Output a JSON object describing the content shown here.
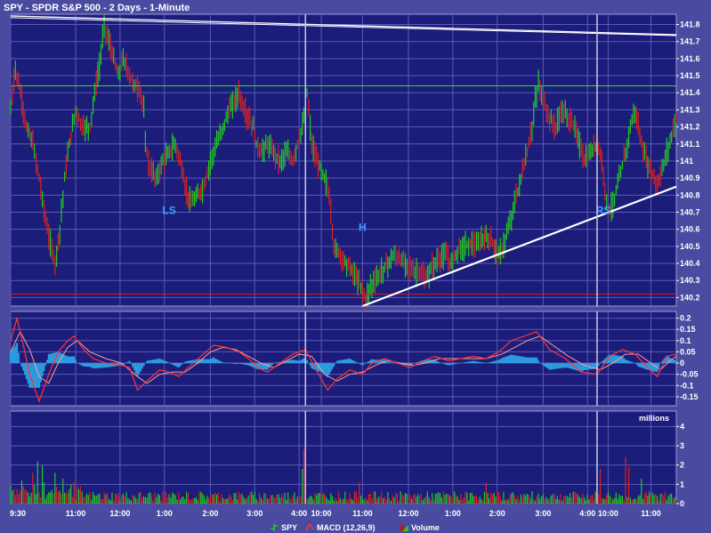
{
  "chart_data": {
    "title": "SPY - SPDR S&P 500 - 2 Days - 1-Minute",
    "type": "line",
    "price_panel": {
      "ylim": [
        140.15,
        141.86
      ],
      "y_ticks": [
        "141.8",
        "141.7",
        "141.6",
        "141.5",
        "141.4",
        "141.3",
        "141.2",
        "141.1",
        "141",
        "140.9",
        "140.8",
        "140.7",
        "140.6",
        "140.5",
        "140.4",
        "140.3",
        "140.2"
      ],
      "y_tick_values": [
        141.8,
        141.7,
        141.6,
        141.5,
        141.4,
        141.3,
        141.2,
        141.1,
        141.0,
        140.9,
        140.8,
        140.7,
        140.6,
        140.5,
        140.4,
        140.3,
        140.2
      ],
      "price_path": [
        [
          0,
          141.3
        ],
        [
          3,
          141.55
        ],
        [
          6,
          141.4
        ],
        [
          10,
          141.2
        ],
        [
          14,
          141.1
        ],
        [
          18,
          140.9
        ],
        [
          23,
          140.6
        ],
        [
          28,
          140.4
        ],
        [
          31,
          140.6
        ],
        [
          34,
          140.9
        ],
        [
          37,
          141.1
        ],
        [
          41,
          141.3
        ],
        [
          45,
          141.2
        ],
        [
          50,
          141.2
        ],
        [
          53,
          141.4
        ],
        [
          56,
          141.55
        ],
        [
          59,
          141.8
        ],
        [
          62,
          141.7
        ],
        [
          65,
          141.6
        ],
        [
          68,
          141.5
        ],
        [
          71,
          141.6
        ],
        [
          75,
          141.5
        ],
        [
          78,
          141.45
        ],
        [
          82,
          141.4
        ],
        [
          84,
          141.3
        ],
        [
          85,
          141.1
        ],
        [
          88,
          140.95
        ],
        [
          92,
          140.9
        ],
        [
          96,
          141.0
        ],
        [
          100,
          141.05
        ],
        [
          104,
          141.1
        ],
        [
          107,
          141.0
        ],
        [
          110,
          140.85
        ],
        [
          114,
          140.75
        ],
        [
          118,
          140.8
        ],
        [
          122,
          140.85
        ],
        [
          126,
          141.0
        ],
        [
          130,
          141.1
        ],
        [
          134,
          141.2
        ],
        [
          138,
          141.3
        ],
        [
          141,
          141.35
        ],
        [
          144,
          141.4
        ],
        [
          147,
          141.3
        ],
        [
          150,
          141.25
        ],
        [
          153,
          141.2
        ],
        [
          155,
          141.1
        ],
        [
          158,
          141.05
        ],
        [
          162,
          141.1
        ],
        [
          166,
          141.05
        ],
        [
          170,
          141.0
        ],
        [
          174,
          141.05
        ],
        [
          178,
          141.0
        ],
        [
          181,
          141.1
        ],
        [
          184,
          141.2
        ],
        [
          186,
          141.3
        ],
        [
          187,
          141.4
        ],
        [
          190,
          141.1
        ],
        [
          193,
          141.0
        ],
        [
          196,
          140.95
        ],
        [
          198,
          140.9
        ],
        [
          200,
          140.85
        ],
        [
          202,
          140.7
        ],
        [
          204,
          140.5
        ],
        [
          208,
          140.45
        ],
        [
          212,
          140.4
        ],
        [
          216,
          140.35
        ],
        [
          219,
          140.3
        ],
        [
          222,
          140.25
        ],
        [
          224,
          140.18
        ],
        [
          226,
          140.25
        ],
        [
          230,
          140.3
        ],
        [
          234,
          140.35
        ],
        [
          238,
          140.4
        ],
        [
          242,
          140.45
        ],
        [
          246,
          140.42
        ],
        [
          250,
          140.4
        ],
        [
          254,
          140.35
        ],
        [
          258,
          140.35
        ],
        [
          262,
          140.3
        ],
        [
          266,
          140.38
        ],
        [
          270,
          140.42
        ],
        [
          274,
          140.45
        ],
        [
          278,
          140.4
        ],
        [
          282,
          140.48
        ],
        [
          286,
          140.5
        ],
        [
          290,
          140.52
        ],
        [
          294,
          140.5
        ],
        [
          298,
          140.55
        ],
        [
          302,
          140.55
        ],
        [
          305,
          140.5
        ],
        [
          308,
          140.45
        ],
        [
          311,
          140.5
        ],
        [
          314,
          140.6
        ],
        [
          318,
          140.75
        ],
        [
          322,
          140.9
        ],
        [
          326,
          141.05
        ],
        [
          329,
          141.2
        ],
        [
          331,
          141.35
        ],
        [
          333,
          141.45
        ],
        [
          336,
          141.35
        ],
        [
          340,
          141.25
        ],
        [
          344,
          141.2
        ],
        [
          348,
          141.3
        ],
        [
          352,
          141.25
        ],
        [
          356,
          141.2
        ],
        [
          359,
          141.1
        ],
        [
          362,
          141.0
        ],
        [
          366,
          141.05
        ],
        [
          370,
          141.1
        ],
        [
          373,
          141.0
        ],
        [
          375,
          140.85
        ],
        [
          377,
          140.7
        ],
        [
          380,
          140.75
        ],
        [
          384,
          140.9
        ],
        [
          388,
          141.05
        ],
        [
          391,
          141.2
        ],
        [
          394,
          141.3
        ],
        [
          396,
          141.2
        ],
        [
          398,
          141.1
        ],
        [
          401,
          141.0
        ],
        [
          404,
          140.95
        ],
        [
          406,
          140.9
        ],
        [
          408,
          140.85
        ],
        [
          411,
          140.95
        ],
        [
          414,
          141.05
        ],
        [
          417,
          141.15
        ],
        [
          420,
          141.25
        ]
      ],
      "resistance_level": 141.44,
      "support_level": 140.22,
      "annotations": [
        {
          "text": "LS",
          "x_min": 100,
          "price": 140.69
        },
        {
          "text": "H",
          "x_min": 222,
          "price": 140.59
        },
        {
          "text": "RS",
          "x_min": 374,
          "price": 140.69
        }
      ],
      "neckline": [
        [
          222,
          140.15
        ],
        [
          420,
          140.85
        ]
      ],
      "upper_trend": [
        [
          0,
          141.85
        ],
        [
          420,
          141.74
        ]
      ]
    },
    "macd_panel": {
      "ylim": [
        -0.19,
        0.23
      ],
      "y_ticks": [
        "0.2",
        "0.15",
        "0.1",
        "0.05",
        "0",
        "-0.05",
        "-0.1",
        "-0.15"
      ],
      "y_tick_values": [
        0.2,
        0.15,
        0.1,
        0.05,
        0,
        -0.05,
        -0.1,
        -0.15
      ],
      "macd_path": [
        [
          0,
          0.1
        ],
        [
          4,
          0.2
        ],
        [
          8,
          0.08
        ],
        [
          12,
          -0.05
        ],
        [
          18,
          -0.17
        ],
        [
          24,
          -0.05
        ],
        [
          30,
          0.05
        ],
        [
          36,
          0.1
        ],
        [
          40,
          0.12
        ],
        [
          46,
          0.06
        ],
        [
          52,
          0.02
        ],
        [
          60,
          0.0
        ],
        [
          70,
          -0.01
        ],
        [
          75,
          -0.02
        ],
        [
          80,
          -0.12
        ],
        [
          86,
          -0.08
        ],
        [
          94,
          -0.03
        ],
        [
          100,
          -0.04
        ],
        [
          106,
          -0.06
        ],
        [
          112,
          -0.02
        ],
        [
          120,
          0.03
        ],
        [
          128,
          0.08
        ],
        [
          136,
          0.07
        ],
        [
          144,
          0.05
        ],
        [
          150,
          0.02
        ],
        [
          156,
          -0.02
        ],
        [
          162,
          -0.04
        ],
        [
          170,
          0.0
        ],
        [
          178,
          0.04
        ],
        [
          186,
          0.06
        ],
        [
          192,
          -0.02
        ],
        [
          200,
          -0.12
        ],
        [
          206,
          -0.07
        ],
        [
          214,
          -0.03
        ],
        [
          222,
          -0.05
        ],
        [
          228,
          0.0
        ],
        [
          236,
          0.02
        ],
        [
          244,
          0.0
        ],
        [
          252,
          -0.02
        ],
        [
          260,
          0.01
        ],
        [
          268,
          0.03
        ],
        [
          276,
          0.01
        ],
        [
          284,
          0.02
        ],
        [
          292,
          0.03
        ],
        [
          300,
          0.02
        ],
        [
          308,
          0.05
        ],
        [
          316,
          0.1
        ],
        [
          324,
          0.12
        ],
        [
          332,
          0.14
        ],
        [
          340,
          0.06
        ],
        [
          350,
          0.02
        ],
        [
          360,
          -0.04
        ],
        [
          370,
          -0.05
        ],
        [
          378,
          0.03
        ],
        [
          386,
          0.06
        ],
        [
          394,
          0.04
        ],
        [
          402,
          -0.02
        ],
        [
          408,
          -0.06
        ],
        [
          414,
          0.03
        ],
        [
          420,
          0.04
        ]
      ],
      "signal_path": [
        [
          0,
          0.05
        ],
        [
          6,
          0.14
        ],
        [
          12,
          0.06
        ],
        [
          18,
          -0.06
        ],
        [
          24,
          -0.09
        ],
        [
          30,
          0.0
        ],
        [
          36,
          0.07
        ],
        [
          42,
          0.1
        ],
        [
          50,
          0.05
        ],
        [
          60,
          0.02
        ],
        [
          70,
          0.0
        ],
        [
          80,
          -0.06
        ],
        [
          86,
          -0.09
        ],
        [
          94,
          -0.05
        ],
        [
          102,
          -0.04
        ],
        [
          110,
          -0.04
        ],
        [
          118,
          0.0
        ],
        [
          126,
          0.05
        ],
        [
          134,
          0.07
        ],
        [
          142,
          0.06
        ],
        [
          150,
          0.03
        ],
        [
          158,
          0.0
        ],
        [
          166,
          -0.02
        ],
        [
          174,
          0.01
        ],
        [
          182,
          0.04
        ],
        [
          190,
          0.03
        ],
        [
          198,
          -0.05
        ],
        [
          206,
          -0.08
        ],
        [
          214,
          -0.05
        ],
        [
          222,
          -0.04
        ],
        [
          230,
          -0.01
        ],
        [
          238,
          0.01
        ],
        [
          246,
          0.0
        ],
        [
          254,
          -0.01
        ],
        [
          262,
          0.0
        ],
        [
          270,
          0.02
        ],
        [
          280,
          0.02
        ],
        [
          290,
          0.02
        ],
        [
          300,
          0.02
        ],
        [
          310,
          0.04
        ],
        [
          318,
          0.07
        ],
        [
          326,
          0.1
        ],
        [
          334,
          0.12
        ],
        [
          342,
          0.08
        ],
        [
          352,
          0.03
        ],
        [
          362,
          -0.01
        ],
        [
          372,
          -0.03
        ],
        [
          380,
          0.0
        ],
        [
          388,
          0.04
        ],
        [
          396,
          0.04
        ],
        [
          404,
          0.0
        ],
        [
          410,
          -0.03
        ],
        [
          416,
          0.01
        ],
        [
          420,
          0.03
        ]
      ]
    },
    "volume_panel": {
      "label": "millions",
      "ylim": [
        0,
        4.8
      ],
      "y_ticks": [
        "4",
        "3",
        "2",
        "1",
        "0"
      ],
      "y_tick_values": [
        4,
        3,
        2,
        1,
        0
      ],
      "spikes": [
        [
          14,
          1.6
        ],
        [
          17,
          2.2
        ],
        [
          20,
          2.0
        ],
        [
          28,
          1.6
        ],
        [
          33,
          1.3
        ],
        [
          38,
          1.0
        ],
        [
          186,
          4.7
        ],
        [
          185,
          2.8
        ],
        [
          184,
          1.8
        ],
        [
          220,
          1.1
        ],
        [
          300,
          1.1
        ],
        [
          370,
          2.8
        ],
        [
          372,
          1.8
        ],
        [
          388,
          2.4
        ],
        [
          390,
          1.9
        ],
        [
          398,
          1.3
        ]
      ]
    },
    "x_ticks": [
      {
        "label": "9:30",
        "min": 0
      },
      {
        "label": "11:00",
        "min": 41
      },
      {
        "label": "12:00",
        "min": 69
      },
      {
        "label": "1:00",
        "min": 97
      },
      {
        "label": "2:00",
        "min": 126
      },
      {
        "label": "3:00",
        "min": 154
      },
      {
        "label": "4:00",
        "min": 182
      },
      {
        "label": "10:00",
        "min": 196
      },
      {
        "label": "11:00",
        "min": 222
      },
      {
        "label": "12:00",
        "min": 251
      },
      {
        "label": "1:00",
        "min": 279
      },
      {
        "label": "2:00",
        "min": 307
      },
      {
        "label": "3:00",
        "min": 336
      },
      {
        "label": "4:00",
        "min": 364
      },
      {
        "label": "10:00",
        "min": 377
      },
      {
        "label": "11:00",
        "min": 404
      }
    ],
    "day_separators": [
      186,
      370
    ],
    "legend": [
      {
        "name": "SPY",
        "color": "#22cc22",
        "icon": "spy-legend-icon"
      },
      {
        "name": "MACD (12,26,9)",
        "color": "#ff3333",
        "icon": "macd-legend-icon"
      },
      {
        "name": "Volume",
        "color": "#cc1111",
        "icon": "volume-legend-icon"
      }
    ],
    "colors": {
      "background": "#4a4aa0",
      "panel": "#1c1c7a",
      "grid": "#5a5ab8",
      "up": "#22cc22",
      "down": "#dd2222",
      "resistance": "#33dd33",
      "support": "#cc2222",
      "trendline": "#ffffff",
      "macd_hist": "#2b9be0",
      "annotation": "#3aa0ff"
    }
  }
}
